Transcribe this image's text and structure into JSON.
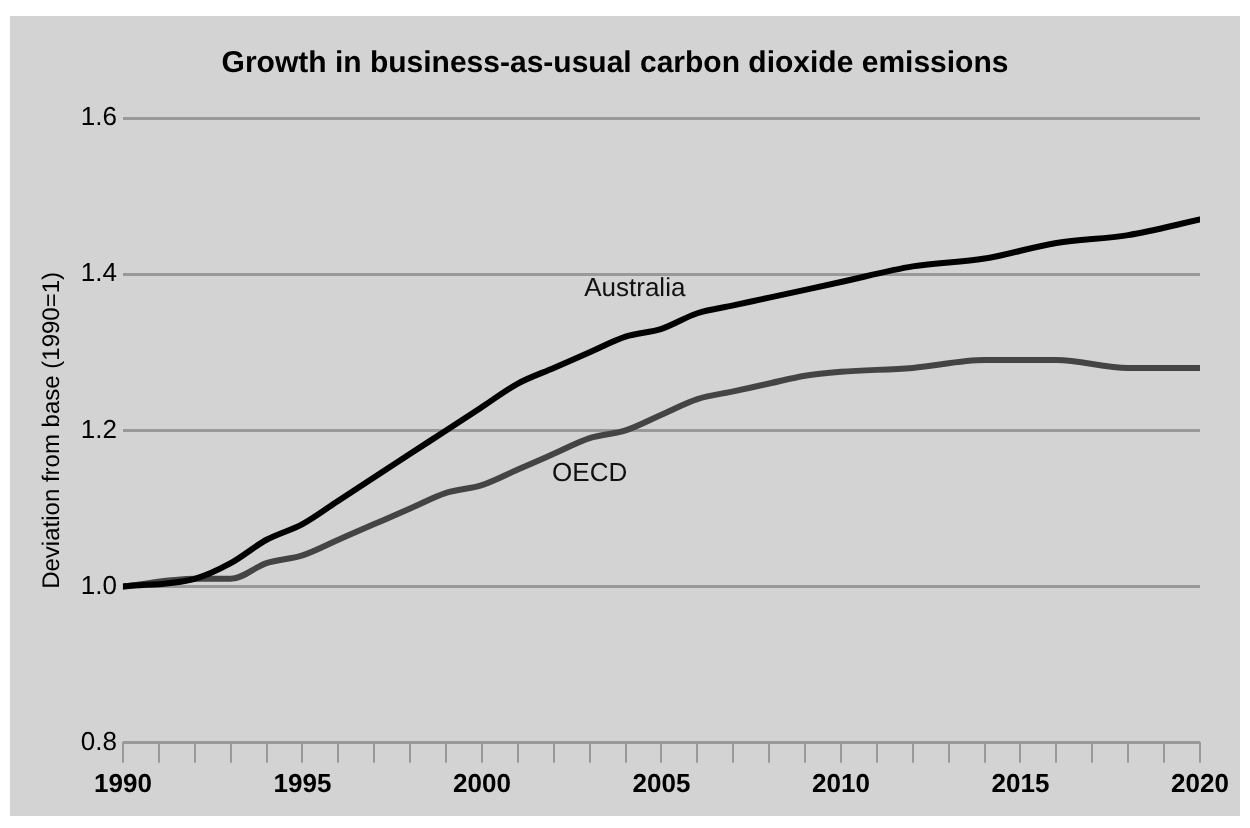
{
  "chart_data": {
    "type": "line",
    "title": "Growth in business-as-usual carbon dioxide emissions",
    "ylabel": "Deviation from base (1990=1)",
    "x": [
      1990,
      1992,
      1993,
      1994,
      1995,
      1996,
      1997,
      1998,
      1999,
      2000,
      2001,
      2002,
      2003,
      2004,
      2005,
      2006,
      2007,
      2008,
      2009,
      2010,
      2012,
      2014,
      2016,
      2018,
      2020
    ],
    "series": [
      {
        "name": "Australia",
        "color": "#000000",
        "values": [
          1.0,
          1.01,
          1.03,
          1.06,
          1.08,
          1.11,
          1.14,
          1.17,
          1.2,
          1.23,
          1.26,
          1.28,
          1.3,
          1.32,
          1.33,
          1.35,
          1.36,
          1.37,
          1.38,
          1.39,
          1.41,
          1.42,
          1.44,
          1.45,
          1.47
        ]
      },
      {
        "name": "OECD",
        "color": "#444444",
        "values": [
          1.0,
          1.01,
          1.01,
          1.03,
          1.04,
          1.06,
          1.08,
          1.1,
          1.12,
          1.13,
          1.15,
          1.17,
          1.19,
          1.2,
          1.22,
          1.24,
          1.25,
          1.26,
          1.27,
          1.275,
          1.28,
          1.29,
          1.29,
          1.28,
          1.28
        ]
      }
    ],
    "xlim": [
      1990,
      2020
    ],
    "xticks": [
      1990,
      {
        "value": 1991,
        "label": null
      },
      {
        "value": 1992,
        "label": null
      },
      {
        "value": 1993,
        "label": null
      },
      {
        "value": 1994,
        "label": null
      },
      1995,
      {
        "value": 1996,
        "label": null
      },
      {
        "value": 1997,
        "label": null
      },
      {
        "value": 1998,
        "label": null
      },
      {
        "value": 1999,
        "label": null
      },
      2000,
      {
        "value": 2001,
        "label": null
      },
      {
        "value": 2002,
        "label": null
      },
      {
        "value": 2003,
        "label": null
      },
      {
        "value": 2004,
        "label": null
      },
      2005,
      {
        "value": 2006,
        "label": null
      },
      {
        "value": 2007,
        "label": null
      },
      {
        "value": 2008,
        "label": null
      },
      {
        "value": 2009,
        "label": null
      },
      2010,
      {
        "value": 2011,
        "label": null
      },
      {
        "value": 2012,
        "label": null
      },
      {
        "value": 2013,
        "label": null
      },
      {
        "value": 2014,
        "label": null
      },
      2015,
      {
        "value": 2016,
        "label": null
      },
      {
        "value": 2017,
        "label": null
      },
      {
        "value": 2018,
        "label": null
      },
      {
        "value": 2019,
        "label": null
      },
      2020
    ],
    "ylim": [
      0.8,
      1.6
    ],
    "yticks": [
      {
        "value": 0.8,
        "label": "0.8"
      },
      {
        "value": 1.0,
        "label": "1.0"
      },
      {
        "value": 1.2,
        "label": "1.2"
      },
      {
        "value": 1.4,
        "label": "1.4"
      },
      {
        "value": 1.6,
        "label": "1.6"
      }
    ],
    "grid": "y",
    "legend": false,
    "marker": "none",
    "line_style": "solid"
  }
}
